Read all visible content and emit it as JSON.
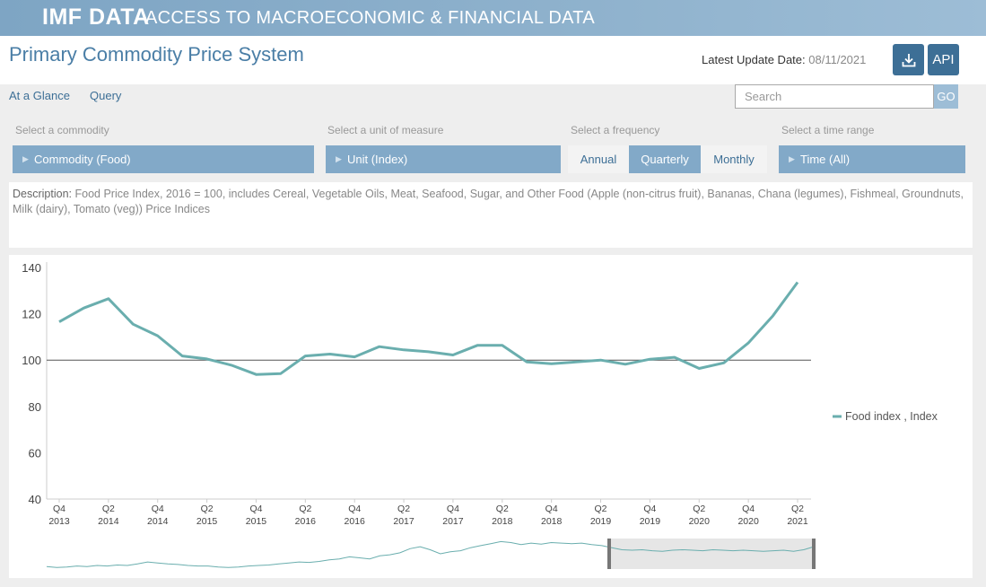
{
  "banner": {
    "brand": "IMF DATA",
    "tagline": "ACCESS TO MACROECONOMIC & FINANCIAL DATA"
  },
  "header": {
    "title": "Primary Commodity Price System",
    "update_label": "Latest Update Date:",
    "update_date": "08/11/2021",
    "download_icon": "download-icon",
    "api_label": "API"
  },
  "nav": {
    "items": [
      "At a Glance",
      "Query"
    ]
  },
  "search": {
    "placeholder": "Search",
    "go_label": "GO"
  },
  "selectors": {
    "commodity": {
      "label": "Select a commodity",
      "value": "Commodity (Food)"
    },
    "unit": {
      "label": "Select a unit of measure",
      "value": "Unit (Index)"
    },
    "frequency": {
      "label": "Select a frequency",
      "options": [
        "Annual",
        "Quarterly",
        "Monthly"
      ],
      "selected": "Quarterly"
    },
    "time": {
      "label": "Select a time range",
      "value": "Time (All)"
    }
  },
  "description": {
    "label": "Description:",
    "text": "Food Price Index, 2016 = 100, includes Cereal, Vegetable Oils, Meat, Seafood, Sugar, and Other Food (Apple (non-citrus fruit), Bananas, Chana (legumes), Fishmeal, Groundnuts, Milk (dairy), Tomato (veg)) Price Indices"
  },
  "colors": {
    "line": "#6aaeae",
    "accent": "#82a9c8",
    "dark_button": "#3d6f96"
  },
  "chart_data": {
    "type": "line",
    "ylim": [
      40,
      140
    ],
    "yticks": [
      40,
      60,
      80,
      100,
      120,
      140
    ],
    "reference_line": 100,
    "x": [
      "Q4 2013",
      "Q1 2014",
      "Q2 2014",
      "Q3 2014",
      "Q4 2014",
      "Q1 2015",
      "Q2 2015",
      "Q3 2015",
      "Q4 2015",
      "Q1 2016",
      "Q2 2016",
      "Q3 2016",
      "Q4 2016",
      "Q1 2017",
      "Q2 2017",
      "Q3 2017",
      "Q4 2017",
      "Q1 2018",
      "Q2 2018",
      "Q3 2018",
      "Q4 2018",
      "Q1 2019",
      "Q2 2019",
      "Q3 2019",
      "Q4 2019",
      "Q1 2020",
      "Q2 2020",
      "Q3 2020",
      "Q4 2020",
      "Q1 2021",
      "Q2 2021"
    ],
    "x_tick_labels": [
      {
        "q": "Q4",
        "year": "2013"
      },
      {
        "q": "Q2",
        "year": "2014"
      },
      {
        "q": "Q4",
        "year": "2014"
      },
      {
        "q": "Q2",
        "year": "2015"
      },
      {
        "q": "Q4",
        "year": "2015"
      },
      {
        "q": "Q2",
        "year": "2016"
      },
      {
        "q": "Q4",
        "year": "2016"
      },
      {
        "q": "Q2",
        "year": "2017"
      },
      {
        "q": "Q4",
        "year": "2017"
      },
      {
        "q": "Q2",
        "year": "2018"
      },
      {
        "q": "Q4",
        "year": "2018"
      },
      {
        "q": "Q2",
        "year": "2019"
      },
      {
        "q": "Q4",
        "year": "2019"
      },
      {
        "q": "Q2",
        "year": "2020"
      },
      {
        "q": "Q4",
        "year": "2020"
      },
      {
        "q": "Q2",
        "year": "2021"
      }
    ],
    "series": [
      {
        "name": "Food index , Index",
        "values": [
          116.5,
          122.5,
          126.5,
          115.5,
          110.5,
          101.8,
          100.5,
          97.8,
          93.8,
          94.2,
          101.8,
          102.6,
          101.4,
          105.8,
          104.4,
          103.6,
          102.2,
          106.4,
          106.4,
          99.2,
          98.4,
          99.2,
          100.0,
          98.2,
          100.4,
          101.2,
          96.4,
          98.8,
          107.4,
          119.2,
          133.6
        ]
      }
    ],
    "navigator": {
      "range_start": "Q2 2019",
      "range_end": "Q2 2021",
      "values": [
        45,
        43,
        44,
        46,
        45,
        47,
        46,
        48,
        47,
        50,
        54,
        52,
        50,
        49,
        47,
        46,
        46,
        44,
        43,
        44,
        46,
        47,
        48,
        50,
        52,
        54,
        53,
        55,
        58,
        60,
        64,
        62,
        60,
        66,
        68,
        72,
        80,
        84,
        78,
        70,
        74,
        76,
        82,
        86,
        90,
        94,
        92,
        88,
        91,
        89,
        92,
        91,
        90,
        91,
        88,
        86,
        82,
        78,
        77,
        78,
        76,
        75,
        77,
        78,
        77,
        76,
        78,
        77,
        76,
        77,
        76,
        75,
        76,
        77,
        75,
        78,
        84
      ]
    },
    "legend_position": "right"
  }
}
